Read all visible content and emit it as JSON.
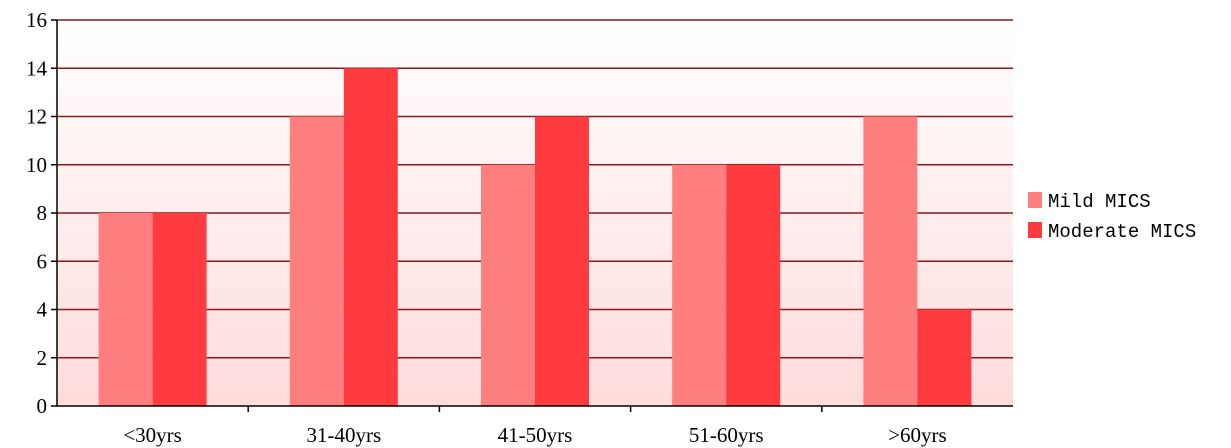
{
  "chart_data": {
    "type": "bar",
    "categories": [
      "<30yrs",
      "31-40yrs",
      "41-50yrs",
      "51-60yrs",
      ">60yrs"
    ],
    "series": [
      {
        "name": "Mild MICS",
        "values": [
          8,
          12,
          10,
          10,
          12
        ],
        "color": "#FF7F7F"
      },
      {
        "name": "Moderate MICS",
        "values": [
          8,
          14,
          12,
          10,
          4
        ],
        "color": "#FF3B3F"
      }
    ],
    "title": "",
    "xlabel": "",
    "ylabel": "",
    "ylim": [
      0,
      16
    ],
    "yticks": [
      0,
      2,
      4,
      6,
      8,
      10,
      12,
      14,
      16
    ],
    "grid": true,
    "legend_position": "right",
    "colors": {
      "gridline": "#8B1A1A",
      "plot_background_top": "#FFFFFF",
      "plot_background_bottom": "#FFDCDC"
    }
  }
}
